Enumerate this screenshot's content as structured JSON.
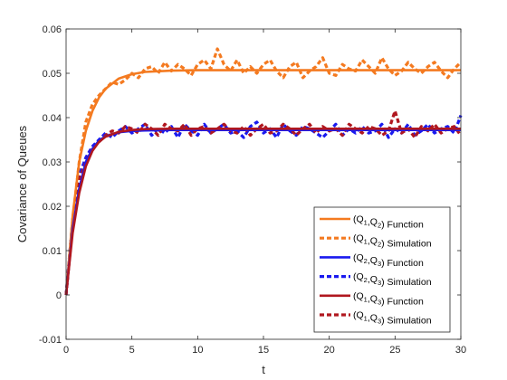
{
  "chart_data": {
    "type": "line",
    "title": "",
    "xlabel": "t",
    "ylabel": "Covariance of Queues",
    "xlim": [
      0,
      30
    ],
    "ylim": [
      -0.01,
      0.06
    ],
    "xticks": [
      0,
      5,
      10,
      15,
      20,
      25,
      30
    ],
    "yticks": [
      -0.01,
      0,
      0.01,
      0.02,
      0.03,
      0.04,
      0.05,
      0.06
    ],
    "xtick_labels": [
      "0",
      "5",
      "10",
      "15",
      "20",
      "25",
      "30"
    ],
    "ytick_labels": [
      "-0.01",
      "0",
      "0.01",
      "0.02",
      "0.03",
      "0.04",
      "0.05",
      "0.06"
    ],
    "grid": false,
    "legend_position": "bottom-right",
    "series": [
      {
        "key": "f12",
        "legend": {
          "pre": "(Q",
          "s1": "1",
          "mid": ",Q",
          "s2": "2",
          "post": ") Function"
        },
        "style": "solid",
        "color": "#f47a20",
        "x": [
          0,
          0.5,
          1,
          1.5,
          2,
          2.5,
          3,
          4,
          5,
          6,
          8,
          10,
          15,
          20,
          25,
          30
        ],
        "y": [
          0,
          0.018,
          0.03,
          0.037,
          0.0415,
          0.0445,
          0.0465,
          0.0488,
          0.0498,
          0.0503,
          0.0506,
          0.0507,
          0.0507,
          0.0507,
          0.0507,
          0.0507
        ]
      },
      {
        "key": "s12",
        "legend": {
          "pre": "(Q",
          "s1": "1",
          "mid": ",Q",
          "s2": "2",
          "post": ") Simulation"
        },
        "style": "dashed",
        "color": "#f47a20",
        "x": [
          0,
          0.5,
          1,
          1.5,
          2,
          2.5,
          3,
          3.5,
          4,
          4.5,
          5,
          5.5,
          6,
          6.5,
          7,
          7.5,
          8,
          8.5,
          9,
          9.5,
          10,
          10.5,
          11,
          11.5,
          12,
          12.5,
          13,
          13.5,
          14,
          14.5,
          15,
          15.5,
          16,
          16.5,
          17,
          17.5,
          18,
          18.5,
          19,
          19.5,
          20,
          20.5,
          21,
          21.5,
          22,
          22.5,
          23,
          23.5,
          24,
          24.5,
          25,
          25.5,
          26,
          26.5,
          27,
          27.5,
          28,
          28.5,
          29,
          29.5,
          30
        ],
        "y": [
          0,
          0.017,
          0.03,
          0.039,
          0.043,
          0.045,
          0.0465,
          0.048,
          0.0475,
          0.0485,
          0.05,
          0.049,
          0.051,
          0.0515,
          0.05,
          0.0525,
          0.0505,
          0.052,
          0.051,
          0.0495,
          0.052,
          0.053,
          0.051,
          0.0555,
          0.052,
          0.0505,
          0.053,
          0.05,
          0.0515,
          0.05,
          0.052,
          0.053,
          0.0505,
          0.049,
          0.0515,
          0.0525,
          0.049,
          0.0505,
          0.0515,
          0.0535,
          0.05,
          0.0495,
          0.052,
          0.051,
          0.0505,
          0.053,
          0.0515,
          0.05,
          0.0535,
          0.051,
          0.0495,
          0.0505,
          0.0525,
          0.051,
          0.05,
          0.0515,
          0.0525,
          0.0505,
          0.049,
          0.051,
          0.0525
        ]
      },
      {
        "key": "f23",
        "legend": {
          "pre": "(Q",
          "s1": "2",
          "mid": ",Q",
          "s2": "3",
          "post": ") Function"
        },
        "style": "solid",
        "color": "#1a1aef",
        "x": [
          0,
          0.5,
          1,
          1.5,
          2,
          2.5,
          3,
          4,
          5,
          6,
          8,
          10,
          15,
          20,
          25,
          30
        ],
        "y": [
          0,
          0.015,
          0.024,
          0.03,
          0.033,
          0.0348,
          0.0358,
          0.0367,
          0.037,
          0.0371,
          0.0372,
          0.0372,
          0.0372,
          0.0372,
          0.0372,
          0.0372
        ]
      },
      {
        "key": "s23",
        "legend": {
          "pre": "(Q",
          "s1": "2",
          "mid": ",Q",
          "s2": "3",
          "post": ") Simulation"
        },
        "style": "dashed",
        "color": "#1a1aef",
        "x": [
          0,
          0.5,
          1,
          1.5,
          2,
          2.5,
          3,
          3.5,
          4,
          4.5,
          5,
          5.5,
          6,
          6.5,
          7,
          7.5,
          8,
          8.5,
          9,
          9.5,
          10,
          10.5,
          11,
          11.5,
          12,
          12.5,
          13,
          13.5,
          14,
          14.5,
          15,
          15.5,
          16,
          16.5,
          17,
          17.5,
          18,
          18.5,
          19,
          19.5,
          20,
          20.5,
          21,
          21.5,
          22,
          22.5,
          23,
          23.5,
          24,
          24.5,
          25,
          25.5,
          26,
          26.5,
          27,
          27.5,
          28,
          28.5,
          29,
          29.5,
          30
        ],
        "y": [
          0,
          0.017,
          0.027,
          0.031,
          0.0335,
          0.035,
          0.0365,
          0.0355,
          0.037,
          0.038,
          0.0365,
          0.0375,
          0.0385,
          0.036,
          0.0375,
          0.0365,
          0.038,
          0.0355,
          0.0385,
          0.037,
          0.036,
          0.0385,
          0.0365,
          0.0375,
          0.0385,
          0.0365,
          0.037,
          0.0355,
          0.038,
          0.039,
          0.0365,
          0.0375,
          0.0355,
          0.0385,
          0.037,
          0.036,
          0.038,
          0.0375,
          0.0365,
          0.0355,
          0.037,
          0.0385,
          0.036,
          0.0375,
          0.0365,
          0.038,
          0.0365,
          0.037,
          0.0385,
          0.0355,
          0.0375,
          0.0365,
          0.0385,
          0.036,
          0.037,
          0.0385,
          0.0365,
          0.0375,
          0.038,
          0.0365,
          0.0405
        ]
      },
      {
        "key": "f13",
        "legend": {
          "pre": "(Q",
          "s1": "1",
          "mid": ",Q",
          "s2": "3",
          "post": ") Function"
        },
        "style": "solid",
        "color": "#b0171f",
        "x": [
          0,
          0.5,
          1,
          1.5,
          2,
          2.5,
          3,
          4,
          5,
          6,
          8,
          10,
          15,
          20,
          25,
          30
        ],
        "y": [
          0,
          0.014,
          0.023,
          0.029,
          0.0325,
          0.0345,
          0.0357,
          0.0368,
          0.0372,
          0.0374,
          0.0375,
          0.0375,
          0.0375,
          0.0375,
          0.0375,
          0.0375
        ]
      },
      {
        "key": "s13",
        "legend": {
          "pre": "(Q",
          "s1": "1",
          "mid": ",Q",
          "s2": "3",
          "post": ") Simulation"
        },
        "style": "dashed",
        "color": "#b0171f",
        "x": [
          0,
          0.5,
          1,
          1.5,
          2,
          2.5,
          3,
          3.5,
          4,
          4.5,
          5,
          5.5,
          6,
          6.5,
          7,
          7.5,
          8,
          8.5,
          9,
          9.5,
          10,
          10.5,
          11,
          11.5,
          12,
          12.5,
          13,
          13.5,
          14,
          14.5,
          15,
          15.5,
          16,
          16.5,
          17,
          17.5,
          18,
          18.5,
          19,
          19.5,
          20,
          20.5,
          21,
          21.5,
          22,
          22.5,
          23,
          23.5,
          24,
          24.5,
          25,
          25.5,
          26,
          26.5,
          27,
          27.5,
          28,
          28.5,
          29,
          29.5,
          30
        ],
        "y": [
          0,
          0.016,
          0.026,
          0.03,
          0.033,
          0.0345,
          0.036,
          0.037,
          0.0365,
          0.038,
          0.0375,
          0.0365,
          0.0385,
          0.0375,
          0.036,
          0.0385,
          0.0375,
          0.037,
          0.0385,
          0.036,
          0.0375,
          0.038,
          0.0365,
          0.0375,
          0.0385,
          0.037,
          0.0365,
          0.038,
          0.036,
          0.0375,
          0.0385,
          0.0365,
          0.037,
          0.0385,
          0.0375,
          0.036,
          0.0375,
          0.0385,
          0.0365,
          0.038,
          0.037,
          0.0375,
          0.036,
          0.0385,
          0.0375,
          0.0365,
          0.038,
          0.0375,
          0.036,
          0.037,
          0.0415,
          0.0365,
          0.0375,
          0.0355,
          0.038,
          0.037,
          0.0385,
          0.0365,
          0.0375,
          0.038,
          0.036
        ]
      }
    ]
  }
}
